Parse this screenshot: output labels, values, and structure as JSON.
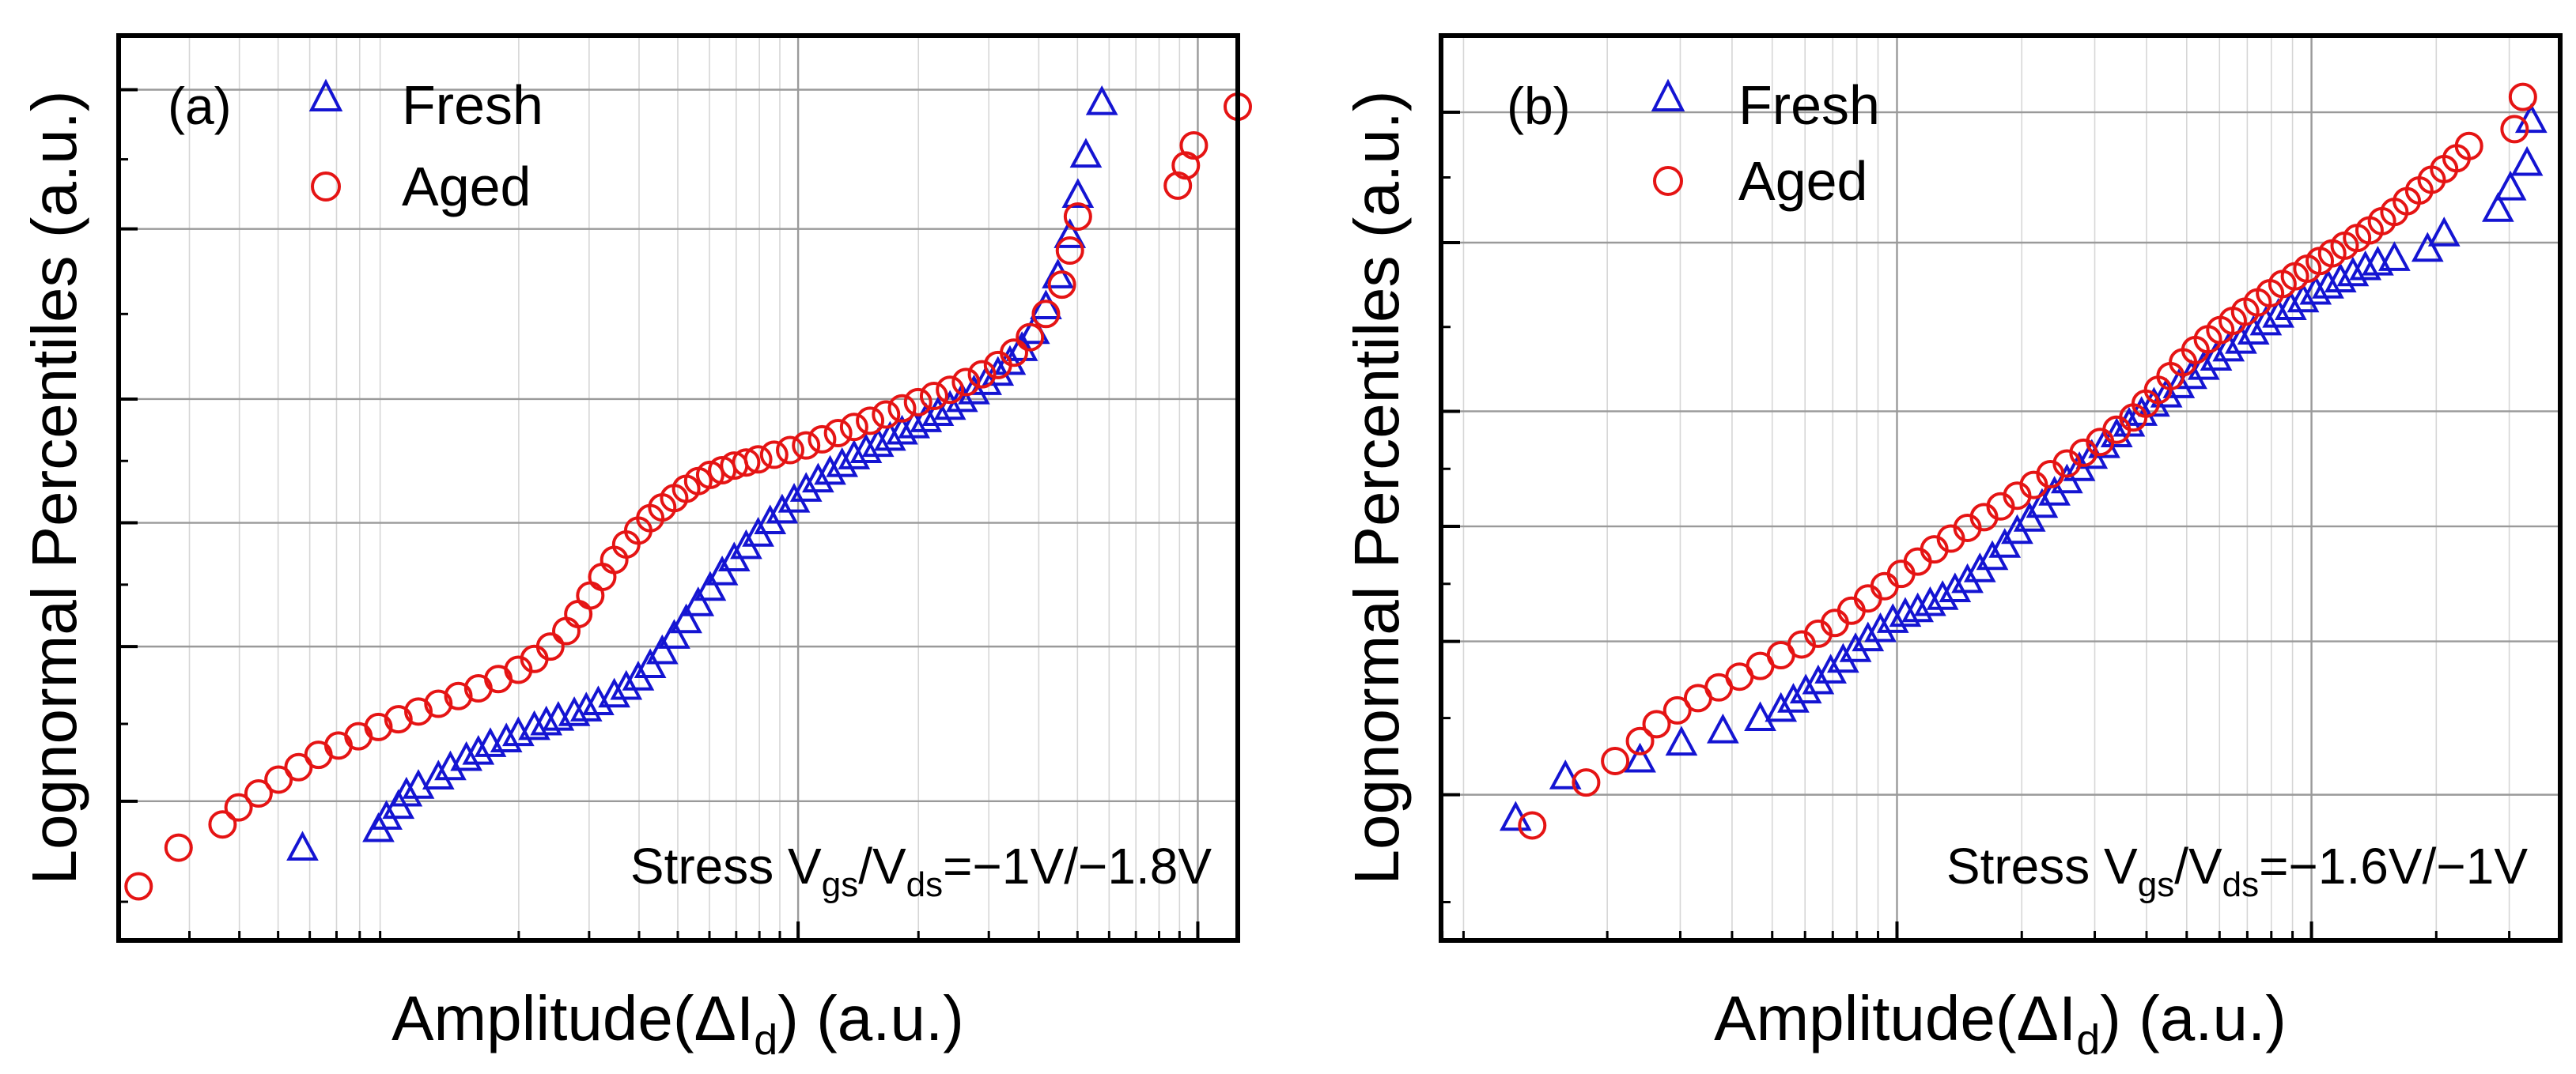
{
  "chart_data": [
    {
      "panel": "(a)",
      "type": "scatter",
      "xscale": "log",
      "yscale": "lognormal-probability",
      "xlabel": "Amplitude(ΔI_d) (a.u.)",
      "xlabel_main": "Amplitude(ΔI",
      "xlabel_sub": "d",
      "xlabel_tail": ") (a.u.)",
      "ylabel": "Lognormal Percentiles (a.u.)",
      "xlim_decades": [
        -1.7,
        1.1
      ],
      "ylim": [
        -2.9,
        2.95
      ],
      "grid": true,
      "legend_position": "top-left",
      "annotation": {
        "parts": [
          "Stress V",
          "gs",
          "/V",
          "ds",
          "=−1V/−1.8V"
        ]
      },
      "series": [
        {
          "name": "Fresh",
          "marker": "triangle",
          "color": "#1414d2",
          "points": [
            [
              -1.24,
              -2.3
            ],
            [
              -1.05,
              -2.18
            ],
            [
              -1.03,
              -2.1
            ],
            [
              -1.0,
              -2.03
            ],
            [
              -0.98,
              -1.95
            ],
            [
              -0.95,
              -1.9
            ],
            [
              -0.9,
              -1.84
            ],
            [
              -0.87,
              -1.78
            ],
            [
              -0.83,
              -1.72
            ],
            [
              -0.8,
              -1.68
            ],
            [
              -0.77,
              -1.63
            ],
            [
              -0.73,
              -1.6
            ],
            [
              -0.7,
              -1.56
            ],
            [
              -0.66,
              -1.52
            ],
            [
              -0.63,
              -1.49
            ],
            [
              -0.6,
              -1.46
            ],
            [
              -0.56,
              -1.43
            ],
            [
              -0.53,
              -1.4
            ],
            [
              -0.5,
              -1.36
            ],
            [
              -0.46,
              -1.31
            ],
            [
              -0.43,
              -1.26
            ],
            [
              -0.4,
              -1.2
            ],
            [
              -0.37,
              -1.12
            ],
            [
              -0.34,
              -1.03
            ],
            [
              -0.31,
              -0.93
            ],
            [
              -0.28,
              -0.83
            ],
            [
              -0.25,
              -0.72
            ],
            [
              -0.22,
              -0.62
            ],
            [
              -0.19,
              -0.52
            ],
            [
              -0.16,
              -0.43
            ],
            [
              -0.13,
              -0.35
            ],
            [
              -0.1,
              -0.27
            ],
            [
              -0.07,
              -0.19
            ],
            [
              -0.04,
              -0.12
            ],
            [
              -0.01,
              -0.05
            ],
            [
              0.02,
              0.02
            ],
            [
              0.05,
              0.08
            ],
            [
              0.08,
              0.13
            ],
            [
              0.11,
              0.18
            ],
            [
              0.14,
              0.23
            ],
            [
              0.17,
              0.27
            ],
            [
              0.2,
              0.31
            ],
            [
              0.23,
              0.35
            ],
            [
              0.26,
              0.39
            ],
            [
              0.29,
              0.43
            ],
            [
              0.32,
              0.47
            ],
            [
              0.35,
              0.51
            ],
            [
              0.38,
              0.55
            ],
            [
              0.41,
              0.6
            ],
            [
              0.44,
              0.65
            ],
            [
              0.47,
              0.71
            ],
            [
              0.5,
              0.77
            ],
            [
              0.53,
              0.84
            ],
            [
              0.56,
              0.93
            ],
            [
              0.59,
              1.04
            ],
            [
              0.62,
              1.2
            ],
            [
              0.65,
              1.4
            ],
            [
              0.68,
              1.66
            ],
            [
              0.7,
              1.92
            ],
            [
              0.72,
              2.18
            ],
            [
              0.76,
              2.52
            ]
          ]
        },
        {
          "name": "Aged",
          "marker": "circle",
          "color": "#e51414",
          "points": [
            [
              -1.65,
              -2.55
            ],
            [
              -1.55,
              -2.3
            ],
            [
              -1.44,
              -2.15
            ],
            [
              -1.4,
              -2.04
            ],
            [
              -1.35,
              -1.95
            ],
            [
              -1.3,
              -1.86
            ],
            [
              -1.25,
              -1.78
            ],
            [
              -1.2,
              -1.7
            ],
            [
              -1.15,
              -1.64
            ],
            [
              -1.1,
              -1.58
            ],
            [
              -1.05,
              -1.52
            ],
            [
              -1.0,
              -1.47
            ],
            [
              -0.95,
              -1.42
            ],
            [
              -0.9,
              -1.37
            ],
            [
              -0.85,
              -1.32
            ],
            [
              -0.8,
              -1.27
            ],
            [
              -0.75,
              -1.21
            ],
            [
              -0.7,
              -1.15
            ],
            [
              -0.66,
              -1.08
            ],
            [
              -0.62,
              -1.0
            ],
            [
              -0.58,
              -0.9
            ],
            [
              -0.55,
              -0.79
            ],
            [
              -0.52,
              -0.67
            ],
            [
              -0.49,
              -0.55
            ],
            [
              -0.46,
              -0.44
            ],
            [
              -0.43,
              -0.34
            ],
            [
              -0.4,
              -0.25
            ],
            [
              -0.37,
              -0.17
            ],
            [
              -0.34,
              -0.1
            ],
            [
              -0.31,
              -0.04
            ],
            [
              -0.28,
              0.02
            ],
            [
              -0.25,
              0.07
            ],
            [
              -0.22,
              0.11
            ],
            [
              -0.19,
              0.14
            ],
            [
              -0.16,
              0.17
            ],
            [
              -0.13,
              0.19
            ],
            [
              -0.1,
              0.21
            ],
            [
              -0.06,
              0.24
            ],
            [
              -0.02,
              0.27
            ],
            [
              0.02,
              0.3
            ],
            [
              0.06,
              0.34
            ],
            [
              0.1,
              0.38
            ],
            [
              0.14,
              0.42
            ],
            [
              0.18,
              0.46
            ],
            [
              0.22,
              0.5
            ],
            [
              0.26,
              0.54
            ],
            [
              0.3,
              0.58
            ],
            [
              0.34,
              0.62
            ],
            [
              0.38,
              0.66
            ],
            [
              0.42,
              0.71
            ],
            [
              0.46,
              0.76
            ],
            [
              0.5,
              0.82
            ],
            [
              0.54,
              0.9
            ],
            [
              0.58,
              1.0
            ],
            [
              0.62,
              1.15
            ],
            [
              0.66,
              1.34
            ],
            [
              0.68,
              1.56
            ],
            [
              0.7,
              1.78
            ],
            [
              0.95,
              1.98
            ],
            [
              0.97,
              2.11
            ],
            [
              0.99,
              2.24
            ],
            [
              1.1,
              2.49
            ]
          ]
        }
      ]
    },
    {
      "panel": "(b)",
      "type": "scatter",
      "xscale": "log",
      "yscale": "lognormal-probability",
      "xlabel": "Amplitude(ΔI_d) (a.u.)",
      "xlabel_main": "Amplitude(ΔI",
      "xlabel_sub": "d",
      "xlabel_tail": ") (a.u.)",
      "ylabel": "Lognormal Percentiles (a.u.)",
      "xlim_decades": [
        -1.1,
        1.6
      ],
      "ylim": [
        -2.95,
        2.95
      ],
      "grid": true,
      "legend_position": "top-left",
      "annotation": {
        "parts": [
          "Stress V",
          "gs",
          "/V",
          "ds",
          "=−1.6V/−1V"
        ]
      },
      "series": [
        {
          "name": "Fresh",
          "marker": "triangle",
          "color": "#1414d2",
          "points": [
            [
              -0.92,
              -2.15
            ],
            [
              -0.8,
              -1.88
            ],
            [
              -0.62,
              -1.77
            ],
            [
              -0.52,
              -1.66
            ],
            [
              -0.42,
              -1.58
            ],
            [
              -0.33,
              -1.5
            ],
            [
              -0.28,
              -1.44
            ],
            [
              -0.25,
              -1.38
            ],
            [
              -0.22,
              -1.32
            ],
            [
              -0.19,
              -1.26
            ],
            [
              -0.16,
              -1.19
            ],
            [
              -0.13,
              -1.12
            ],
            [
              -0.1,
              -1.05
            ],
            [
              -0.07,
              -0.98
            ],
            [
              -0.04,
              -0.92
            ],
            [
              -0.01,
              -0.86
            ],
            [
              0.02,
              -0.82
            ],
            [
              0.05,
              -0.79
            ],
            [
              0.08,
              -0.75
            ],
            [
              0.11,
              -0.71
            ],
            [
              0.14,
              -0.66
            ],
            [
              0.17,
              -0.6
            ],
            [
              0.2,
              -0.53
            ],
            [
              0.23,
              -0.45
            ],
            [
              0.26,
              -0.37
            ],
            [
              0.29,
              -0.28
            ],
            [
              0.32,
              -0.2
            ],
            [
              0.35,
              -0.11
            ],
            [
              0.38,
              -0.03
            ],
            [
              0.41,
              0.05
            ],
            [
              0.44,
              0.13
            ],
            [
              0.47,
              0.21
            ],
            [
              0.5,
              0.28
            ],
            [
              0.53,
              0.35
            ],
            [
              0.56,
              0.42
            ],
            [
              0.59,
              0.49
            ],
            [
              0.62,
              0.55
            ],
            [
              0.65,
              0.61
            ],
            [
              0.68,
              0.67
            ],
            [
              0.71,
              0.73
            ],
            [
              0.74,
              0.79
            ],
            [
              0.77,
              0.85
            ],
            [
              0.8,
              0.91
            ],
            [
              0.83,
              0.96
            ],
            [
              0.86,
              1.02
            ],
            [
              0.89,
              1.08
            ],
            [
              0.92,
              1.13
            ],
            [
              0.95,
              1.18
            ],
            [
              0.98,
              1.23
            ],
            [
              1.01,
              1.28
            ],
            [
              1.04,
              1.32
            ],
            [
              1.07,
              1.36
            ],
            [
              1.1,
              1.4
            ],
            [
              1.13,
              1.44
            ],
            [
              1.16,
              1.47
            ],
            [
              1.2,
              1.5
            ],
            [
              1.28,
              1.56
            ],
            [
              1.32,
              1.66
            ],
            [
              1.45,
              1.82
            ],
            [
              1.48,
              1.96
            ],
            [
              1.52,
              2.12
            ],
            [
              1.53,
              2.4
            ]
          ]
        },
        {
          "name": "Aged",
          "marker": "circle",
          "color": "#e51414",
          "points": [
            [
              -0.88,
              -2.2
            ],
            [
              -0.75,
              -1.92
            ],
            [
              -0.68,
              -1.78
            ],
            [
              -0.62,
              -1.65
            ],
            [
              -0.58,
              -1.54
            ],
            [
              -0.53,
              -1.45
            ],
            [
              -0.48,
              -1.37
            ],
            [
              -0.43,
              -1.3
            ],
            [
              -0.38,
              -1.23
            ],
            [
              -0.33,
              -1.16
            ],
            [
              -0.28,
              -1.09
            ],
            [
              -0.23,
              -1.02
            ],
            [
              -0.19,
              -0.95
            ],
            [
              -0.15,
              -0.88
            ],
            [
              -0.11,
              -0.8
            ],
            [
              -0.07,
              -0.72
            ],
            [
              -0.03,
              -0.64
            ],
            [
              0.01,
              -0.56
            ],
            [
              0.05,
              -0.48
            ],
            [
              0.09,
              -0.4
            ],
            [
              0.13,
              -0.33
            ],
            [
              0.17,
              -0.26
            ],
            [
              0.21,
              -0.19
            ],
            [
              0.25,
              -0.12
            ],
            [
              0.29,
              -0.05
            ],
            [
              0.33,
              0.02
            ],
            [
              0.37,
              0.09
            ],
            [
              0.41,
              0.16
            ],
            [
              0.45,
              0.23
            ],
            [
              0.49,
              0.3
            ],
            [
              0.53,
              0.38
            ],
            [
              0.57,
              0.46
            ],
            [
              0.6,
              0.55
            ],
            [
              0.63,
              0.64
            ],
            [
              0.66,
              0.73
            ],
            [
              0.69,
              0.82
            ],
            [
              0.72,
              0.9
            ],
            [
              0.75,
              0.97
            ],
            [
              0.78,
              1.03
            ],
            [
              0.81,
              1.09
            ],
            [
              0.84,
              1.15
            ],
            [
              0.87,
              1.21
            ],
            [
              0.9,
              1.27
            ],
            [
              0.93,
              1.33
            ],
            [
              0.96,
              1.38
            ],
            [
              0.99,
              1.43
            ],
            [
              1.02,
              1.48
            ],
            [
              1.05,
              1.53
            ],
            [
              1.08,
              1.58
            ],
            [
              1.11,
              1.63
            ],
            [
              1.14,
              1.68
            ],
            [
              1.17,
              1.74
            ],
            [
              1.2,
              1.8
            ],
            [
              1.23,
              1.87
            ],
            [
              1.26,
              1.94
            ],
            [
              1.29,
              2.01
            ],
            [
              1.32,
              2.08
            ],
            [
              1.35,
              2.15
            ],
            [
              1.38,
              2.23
            ],
            [
              1.49,
              2.34
            ],
            [
              1.51,
              2.55
            ]
          ]
        }
      ]
    }
  ]
}
